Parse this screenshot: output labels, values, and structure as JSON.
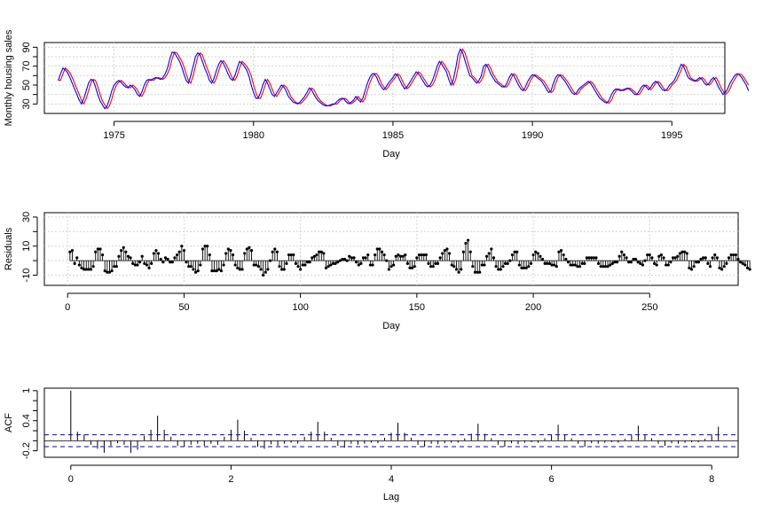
{
  "colors": {
    "actual": "#0000ff",
    "fitted": "#ff0000",
    "grid": "#d3d3d3",
    "ci": "#0000cc",
    "ink": "#000000"
  },
  "chart_data": [
    {
      "type": "line",
      "xlabel": "Day",
      "ylabel": "Monthly housing sales",
      "xlim": [
        1972.5,
        1996.9
      ],
      "ylim": [
        20,
        95
      ],
      "x_ticks": [
        1975,
        1980,
        1985,
        1990,
        1995
      ],
      "y_ticks": [
        30,
        50,
        70,
        90
      ],
      "y_ticks_minor": [
        40,
        60,
        80
      ],
      "grid": true,
      "start": 1973.0,
      "frequency": 12,
      "series": [
        {
          "color": "#0000ff",
          "values": [
            55,
            62,
            68,
            66,
            63,
            58,
            52,
            46,
            40,
            34,
            30,
            36,
            44,
            52,
            56,
            55,
            48,
            40,
            33,
            29,
            25,
            28,
            35,
            44,
            50,
            53,
            55,
            53,
            50,
            48,
            47,
            50,
            48,
            45,
            40,
            38,
            43,
            50,
            55,
            56,
            55,
            57,
            58,
            57,
            56,
            58,
            62,
            68,
            78,
            85,
            84,
            80,
            76,
            70,
            62,
            55,
            52,
            60,
            70,
            80,
            84,
            82,
            75,
            68,
            62,
            55,
            52,
            57,
            65,
            72,
            76,
            73,
            68,
            62,
            57,
            55,
            60,
            68,
            75,
            73,
            70,
            66,
            60,
            50,
            42,
            36,
            36,
            42,
            50,
            56,
            52,
            46,
            40,
            38,
            42,
            46,
            50,
            48,
            44,
            38,
            35,
            32,
            31,
            30,
            32,
            35,
            38,
            42,
            47,
            45,
            40,
            36,
            33,
            31,
            29,
            28,
            28,
            29,
            30,
            30,
            33,
            35,
            36,
            35,
            32,
            30,
            32,
            34,
            38,
            35,
            32,
            36,
            44,
            52,
            58,
            62,
            62,
            58,
            52,
            48,
            45,
            48,
            52,
            55,
            58,
            62,
            60,
            55,
            50,
            46,
            48,
            52,
            56,
            60,
            64,
            62,
            58,
            54,
            50,
            48,
            50,
            55,
            62,
            70,
            75,
            72,
            68,
            64,
            56,
            50,
            56,
            68,
            82,
            88,
            84,
            76,
            68,
            60,
            58,
            55,
            52,
            55,
            60,
            70,
            72,
            68,
            62,
            58,
            54,
            52,
            50,
            48,
            48,
            52,
            58,
            62,
            60,
            55,
            50,
            46,
            44,
            48,
            54,
            58,
            61,
            60,
            58,
            56,
            54,
            50,
            46,
            42,
            44,
            52,
            58,
            61,
            60,
            57,
            54,
            50,
            46,
            42,
            40,
            42,
            46,
            48,
            50,
            52,
            54,
            52,
            48,
            44,
            40,
            36,
            34,
            32,
            31,
            34,
            40,
            44,
            46,
            45,
            44,
            45,
            46,
            47,
            45,
            43,
            40,
            40,
            44,
            48,
            50,
            48,
            45,
            48,
            52,
            54,
            52,
            48,
            45,
            44,
            46,
            50,
            52,
            55,
            60,
            66,
            72,
            70,
            64,
            58,
            56,
            55,
            54,
            56,
            58,
            56,
            52,
            50,
            52,
            56,
            58,
            54,
            48,
            44,
            40,
            42,
            46,
            52,
            56,
            60,
            62,
            61,
            58,
            54,
            50,
            44
          ]
        },
        {
          "color": "#ff0000",
          "values": [
            55,
            55,
            62,
            68,
            66,
            63,
            58,
            52,
            46,
            40,
            34,
            30,
            36,
            44,
            52,
            56,
            55,
            48,
            40,
            33,
            29,
            25,
            28,
            35,
            44,
            50,
            53,
            55,
            53,
            50,
            48,
            47,
            50,
            48,
            45,
            40,
            38,
            43,
            50,
            55,
            56,
            55,
            57,
            58,
            57,
            56,
            58,
            62,
            68,
            78,
            85,
            84,
            80,
            76,
            70,
            62,
            55,
            52,
            60,
            70,
            80,
            84,
            82,
            75,
            68,
            62,
            55,
            52,
            57,
            65,
            72,
            76,
            73,
            68,
            62,
            57,
            55,
            60,
            68,
            75,
            73,
            70,
            66,
            60,
            50,
            42,
            36,
            36,
            42,
            50,
            56,
            52,
            46,
            40,
            38,
            42,
            46,
            50,
            48,
            44,
            38,
            35,
            32,
            31,
            30,
            32,
            35,
            38,
            42,
            47,
            45,
            40,
            36,
            33,
            31,
            29,
            28,
            28,
            29,
            30,
            30,
            33,
            35,
            36,
            35,
            32,
            30,
            32,
            34,
            38,
            35,
            32,
            36,
            44,
            52,
            58,
            62,
            62,
            58,
            52,
            48,
            45,
            48,
            52,
            55,
            58,
            62,
            60,
            55,
            50,
            46,
            48,
            52,
            56,
            60,
            64,
            62,
            58,
            54,
            50,
            48,
            50,
            55,
            62,
            70,
            75,
            72,
            68,
            64,
            56,
            50,
            56,
            68,
            82,
            88,
            84,
            76,
            68,
            60,
            58,
            55,
            52,
            55,
            60,
            70,
            72,
            68,
            62,
            58,
            54,
            52,
            50,
            48,
            48,
            52,
            58,
            62,
            60,
            55,
            50,
            46,
            44,
            48,
            54,
            58,
            61,
            60,
            58,
            56,
            54,
            50,
            46,
            42,
            44,
            52,
            58,
            61,
            60,
            57,
            54,
            50,
            46,
            42,
            40,
            42,
            46,
            48,
            50,
            52,
            54,
            52,
            48,
            44,
            40,
            36,
            34,
            32,
            31,
            34,
            40,
            44,
            46,
            45,
            44,
            45,
            46,
            47,
            45,
            43,
            40,
            40,
            44,
            48,
            50,
            48,
            45,
            48,
            52,
            54,
            52,
            48,
            45,
            44,
            46,
            50,
            52,
            55,
            60,
            66,
            72,
            70,
            64,
            58,
            56,
            55,
            54,
            56,
            58,
            56,
            52,
            50,
            52,
            56,
            58,
            54,
            48,
            44,
            40,
            42,
            46,
            52,
            56,
            60,
            62,
            61,
            58,
            54,
            50
          ]
        }
      ]
    },
    {
      "type": "scatter",
      "style": "stem",
      "xlabel": "Day",
      "ylabel": "Residuals",
      "xlim": [
        -10,
        288
      ],
      "ylim": [
        -17,
        33
      ],
      "x_ticks": [
        0,
        50,
        100,
        150,
        200,
        250
      ],
      "y_ticks": [
        -10,
        10,
        30
      ],
      "y_ticks_minor": [
        0,
        20
      ],
      "grid": true,
      "x_start": 1,
      "values": [
        6,
        7,
        -2,
        2,
        -3,
        -5,
        -6,
        -6,
        -6,
        -6,
        -4,
        6,
        8,
        8,
        4,
        -7,
        -8,
        -8,
        -7,
        -4,
        -4,
        3,
        7,
        9,
        6,
        3,
        2,
        -2,
        -3,
        -3,
        -1,
        3,
        -2,
        -3,
        -5,
        -2,
        5,
        7,
        5,
        1,
        -1,
        2,
        1,
        -1,
        -1,
        2,
        4,
        6,
        10,
        7,
        -1,
        -4,
        -4,
        -6,
        -8,
        -7,
        -3,
        8,
        10,
        10,
        4,
        -7,
        -7,
        -7,
        -6,
        -7,
        -3,
        5,
        8,
        7,
        4,
        -3,
        -5,
        -6,
        -6,
        5,
        8,
        9,
        7,
        -3,
        -3,
        -4,
        -6,
        -10,
        -8,
        -6,
        0,
        6,
        8,
        6,
        -4,
        -6,
        -6,
        -2,
        4,
        4,
        4,
        -2,
        -4,
        -6,
        -3,
        -3,
        -1,
        -1,
        2,
        3,
        4,
        6,
        6,
        5,
        -5,
        -4,
        -3,
        -2,
        -2,
        -1,
        0,
        1,
        1,
        0,
        3,
        2,
        2,
        -1,
        -3,
        -2,
        2,
        2,
        4,
        -3,
        -3,
        4,
        8,
        8,
        6,
        4,
        0,
        -6,
        -4,
        -3,
        3,
        4,
        3,
        3,
        4,
        -2,
        -5,
        -5,
        -4,
        2,
        4,
        4,
        4,
        4,
        -2,
        -4,
        -4,
        -2,
        -2,
        2,
        5,
        7,
        8,
        5,
        -3,
        -4,
        -6,
        -8,
        -6,
        6,
        12,
        14,
        6,
        -4,
        -8,
        -8,
        -8,
        -3,
        -3,
        3,
        5,
        8,
        2,
        -4,
        -6,
        -6,
        -4,
        -2,
        -2,
        0,
        4,
        6,
        6,
        -3,
        -5,
        -5,
        -5,
        -4,
        -2,
        4,
        6,
        5,
        3,
        1,
        -2,
        -2,
        -2,
        -3,
        -3,
        -4,
        6,
        7,
        4,
        1,
        -1,
        -3,
        -3,
        -3,
        -4,
        -4,
        -2,
        -2,
        2,
        2,
        2,
        2,
        2,
        -2,
        -4,
        -4,
        -4,
        -4,
        -3,
        -2,
        -1,
        -1,
        3,
        6,
        4,
        2,
        -1,
        -1,
        1,
        1,
        -1,
        -2,
        -3,
        0,
        4,
        4,
        2,
        -2,
        -3,
        3,
        4,
        2,
        -3,
        -3,
        -1,
        2,
        2,
        3,
        5,
        6,
        6,
        5,
        -5,
        -6,
        -4,
        -1,
        -1,
        1,
        2,
        2,
        -2,
        -4,
        2,
        4,
        2,
        -5,
        -6,
        -4,
        -2,
        2,
        4,
        4,
        4,
        1,
        -1,
        -2,
        -3,
        -5,
        -6
      ]
    },
    {
      "type": "bar",
      "style": "acf",
      "xlabel": "Lag",
      "ylabel": "ACF",
      "xlim": [
        -0.33,
        8.33
      ],
      "ylim": [
        -0.33,
        1.05
      ],
      "x_ticks": [
        0,
        2,
        4,
        6,
        8
      ],
      "y_ticks": [
        -0.2,
        0.4,
        1.0
      ],
      "y_ticks_minor": [
        0.0,
        0.2,
        0.6,
        0.8
      ],
      "confidence_bounds": [
        0.118,
        -0.118
      ],
      "lag_step": 0.08333,
      "values": [
        1.0,
        0.18,
        0.12,
        -0.08,
        -0.16,
        -0.24,
        -0.1,
        -0.05,
        -0.08,
        -0.24,
        -0.18,
        0.1,
        0.22,
        0.5,
        0.22,
        0.08,
        -0.1,
        -0.12,
        -0.08,
        -0.06,
        -0.1,
        -0.06,
        -0.08,
        0.08,
        0.22,
        0.42,
        0.2,
        0.06,
        -0.12,
        -0.16,
        -0.07,
        -0.1,
        -0.06,
        -0.04,
        -0.06,
        0.08,
        0.18,
        0.38,
        0.18,
        0.06,
        -0.1,
        -0.14,
        -0.06,
        -0.08,
        -0.06,
        -0.04,
        -0.05,
        0.06,
        0.16,
        0.36,
        0.16,
        0.06,
        -0.08,
        -0.12,
        -0.06,
        -0.07,
        -0.05,
        -0.04,
        -0.04,
        0.05,
        0.14,
        0.34,
        0.14,
        0.05,
        -0.08,
        -0.12,
        -0.05,
        -0.07,
        -0.04,
        -0.03,
        -0.04,
        0.05,
        0.12,
        0.32,
        0.12,
        0.05,
        -0.06,
        -0.12,
        -0.05,
        -0.06,
        -0.04,
        -0.03,
        -0.04,
        0.04,
        0.12,
        0.3,
        0.12,
        0.05,
        -0.06,
        -0.1,
        -0.05,
        -0.06,
        -0.04,
        -0.03,
        -0.03,
        0.04,
        0.12,
        0.28
      ]
    }
  ]
}
